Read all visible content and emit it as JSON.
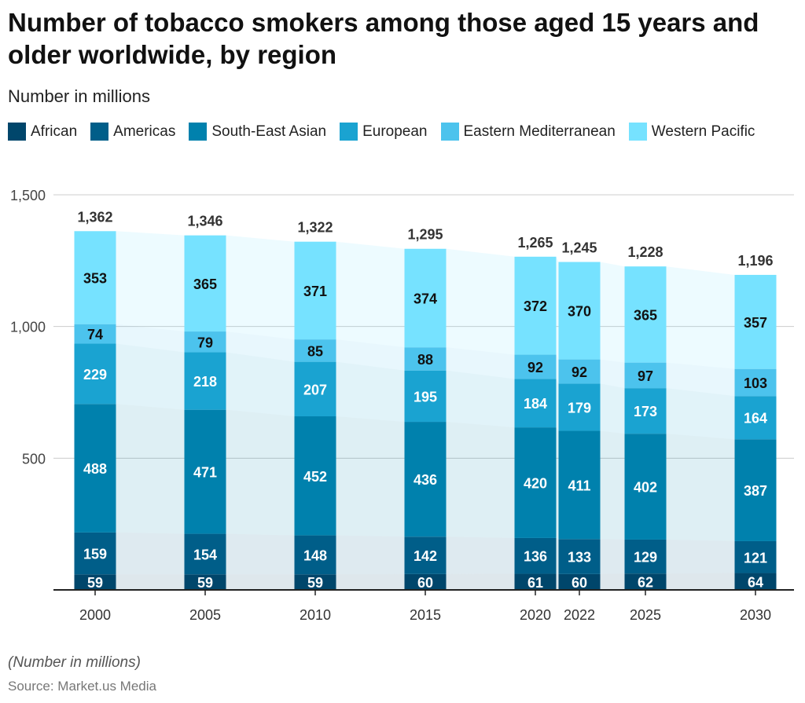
{
  "title": "Number of tobacco smokers among those aged 15 years and older worldwide, by region",
  "subtitle": "Number in millions",
  "note": "(Number in millions)",
  "source": "Source: Market.us Media",
  "chart_data": {
    "type": "bar",
    "stacked": true,
    "categories": [
      "2000",
      "2005",
      "2010",
      "2015",
      "2020",
      "2022",
      "2025",
      "2030"
    ],
    "series": [
      {
        "name": "African",
        "color": "#00466b",
        "values": [
          59,
          59,
          59,
          60,
          61,
          60,
          62,
          64
        ]
      },
      {
        "name": "Americas",
        "color": "#005e89",
        "values": [
          159,
          154,
          148,
          142,
          136,
          133,
          129,
          121
        ]
      },
      {
        "name": "South-East Asian",
        "color": "#0081ad",
        "values": [
          488,
          471,
          452,
          436,
          420,
          411,
          402,
          387
        ]
      },
      {
        "name": "European",
        "color": "#1aa3d1",
        "values": [
          229,
          218,
          207,
          195,
          184,
          179,
          173,
          164
        ]
      },
      {
        "name": "Eastern Mediterranean",
        "color": "#4cc3ed",
        "values": [
          74,
          79,
          85,
          88,
          92,
          92,
          97,
          103
        ]
      },
      {
        "name": "Western Pacific",
        "color": "#76e2ff",
        "values": [
          353,
          365,
          371,
          374,
          372,
          370,
          365,
          357
        ]
      }
    ],
    "totals": [
      "1,362",
      "1,346",
      "1,322",
      "1,295",
      "1,265",
      "1,245",
      "1,228",
      "1,196"
    ],
    "yticks": [
      "500",
      "1,000",
      "1,500"
    ],
    "ylim": [
      0,
      1500
    ],
    "grid": true,
    "legend_position": "top-left"
  }
}
